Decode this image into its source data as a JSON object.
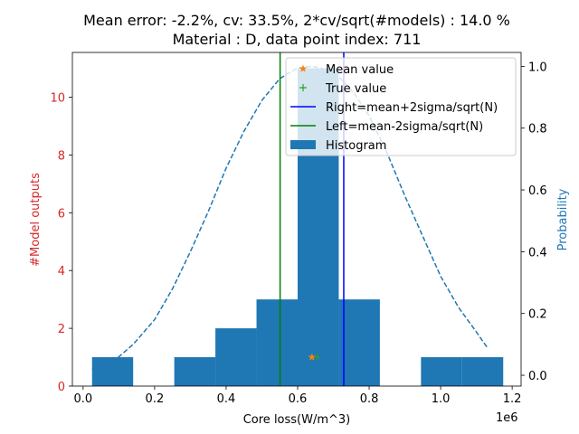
{
  "chart_data": {
    "type": "bar",
    "title": [
      "Mean error: -2.2%, cv: 33.5%, 2*cv/sqrt(#models) : 14.0 %",
      "Material : D, data point index: 711"
    ],
    "xlabel": "Core loss(W/m^3)",
    "x_offset_label": "1e6",
    "ylabel": "#Model outputs",
    "y2label": "Probability",
    "xlim": [
      -0.03,
      1.225
    ],
    "ylim": [
      0,
      11.55
    ],
    "y2lim": [
      -0.035,
      1.045
    ],
    "x_ticks": [
      0.0,
      0.2,
      0.4,
      0.6,
      0.8,
      1.0,
      1.2
    ],
    "x_tick_labels": [
      "0.0",
      "0.2",
      "0.4",
      "0.6",
      "0.8",
      "1.0",
      "1.2"
    ],
    "y_ticks": [
      0,
      2,
      4,
      6,
      8,
      10
    ],
    "y_tick_labels": [
      "0",
      "2",
      "4",
      "6",
      "8",
      "10"
    ],
    "y2_ticks": [
      0.0,
      0.2,
      0.4,
      0.6,
      0.8,
      1.0
    ],
    "y2_tick_labels": [
      "0.0",
      "0.2",
      "0.4",
      "0.6",
      "0.8",
      "1.0"
    ],
    "histogram": {
      "name": "Histogram",
      "color": "#1f77b4",
      "bins": [
        {
          "x0": 0.025,
          "x1": 0.14,
          "count": 1
        },
        {
          "x0": 0.14,
          "x1": 0.255,
          "count": 0
        },
        {
          "x0": 0.255,
          "x1": 0.37,
          "count": 1
        },
        {
          "x0": 0.37,
          "x1": 0.485,
          "count": 2
        },
        {
          "x0": 0.485,
          "x1": 0.6,
          "count": 3
        },
        {
          "x0": 0.6,
          "x1": 0.715,
          "count": 11
        },
        {
          "x0": 0.715,
          "x1": 0.83,
          "count": 3
        },
        {
          "x0": 0.83,
          "x1": 0.945,
          "count": 0
        },
        {
          "x0": 0.945,
          "x1": 1.06,
          "count": 1
        },
        {
          "x0": 1.06,
          "x1": 1.175,
          "count": 1
        }
      ]
    },
    "probability_curve": {
      "color": "#1f77b4",
      "x": [
        0.025,
        0.08,
        0.14,
        0.2,
        0.25,
        0.3,
        0.35,
        0.4,
        0.45,
        0.5,
        0.55,
        0.6,
        0.64,
        0.68,
        0.72,
        0.76,
        0.8,
        0.85,
        0.9,
        0.95,
        1.0,
        1.05,
        1.1,
        1.13
      ],
      "y": [
        0.02,
        0.04,
        0.1,
        0.18,
        0.28,
        0.4,
        0.53,
        0.67,
        0.79,
        0.89,
        0.96,
        0.995,
        1.0,
        0.99,
        0.96,
        0.91,
        0.84,
        0.72,
        0.58,
        0.45,
        0.32,
        0.22,
        0.14,
        0.09
      ]
    },
    "mean_value": {
      "name": "Mean value",
      "x": 0.64,
      "y": 1,
      "color": "#ff7f0e"
    },
    "true_value": {
      "name": "True value",
      "x": 0.655,
      "y": 1,
      "color": "#2ca02c"
    },
    "right_line": {
      "name": "Right=mean+2sigma/sqrt(N)",
      "x": 0.729,
      "color": "#0000ff"
    },
    "left_line": {
      "name": "Left=mean-2sigma/sqrt(N)",
      "x": 0.551,
      "color": "#008000"
    },
    "legend": [
      "Mean value",
      "True value",
      "Right=mean+2sigma/sqrt(N)",
      "Left=mean-2sigma/sqrt(N)",
      "Histogram"
    ],
    "legend_position": "top-right"
  }
}
